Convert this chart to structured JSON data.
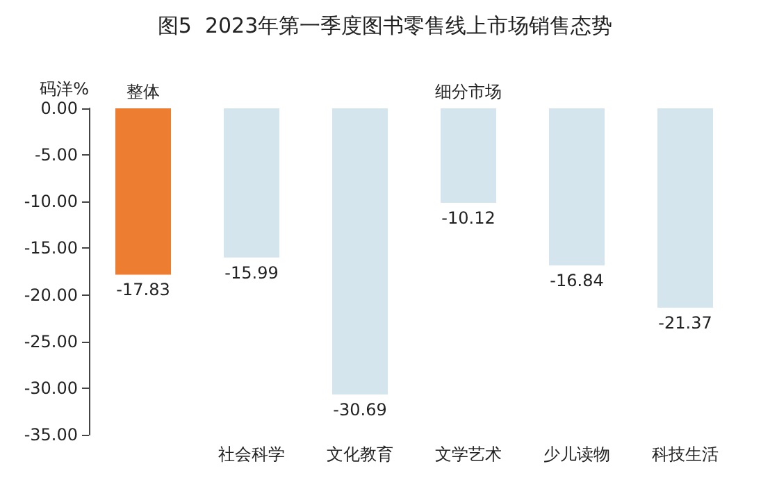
{
  "chart_data": {
    "type": "bar",
    "title": "图5  2023年第一季度图书零售线上市场销售态势",
    "ylabel": "码洋%",
    "categories": [
      null,
      "社会科学",
      "文化教育",
      "文学艺术",
      "少儿读物",
      "科技生活"
    ],
    "values": [
      -17.83,
      -15.99,
      -30.69,
      -10.12,
      -16.84,
      -21.37
    ],
    "colors": [
      "#ed7d31",
      "#d5e5ee",
      "#d5e5ee",
      "#d5e5ee",
      "#d5e5ee",
      "#d5e5ee"
    ],
    "ylim": [
      -35,
      0
    ],
    "yticks": [
      {
        "value": 0,
        "label": "0.00"
      },
      {
        "value": -5,
        "label": "-5.00"
      },
      {
        "value": -10,
        "label": "-10.00"
      },
      {
        "value": -15,
        "label": "-15.00"
      },
      {
        "value": -20,
        "label": "-20.00"
      },
      {
        "value": -25,
        "label": "-25.00"
      },
      {
        "value": -30,
        "label": "-30.00"
      },
      {
        "value": -35,
        "label": "-35.00"
      }
    ],
    "annotations": [
      "整体",
      "细分市场"
    ],
    "data_labels": true,
    "grid": false
  }
}
